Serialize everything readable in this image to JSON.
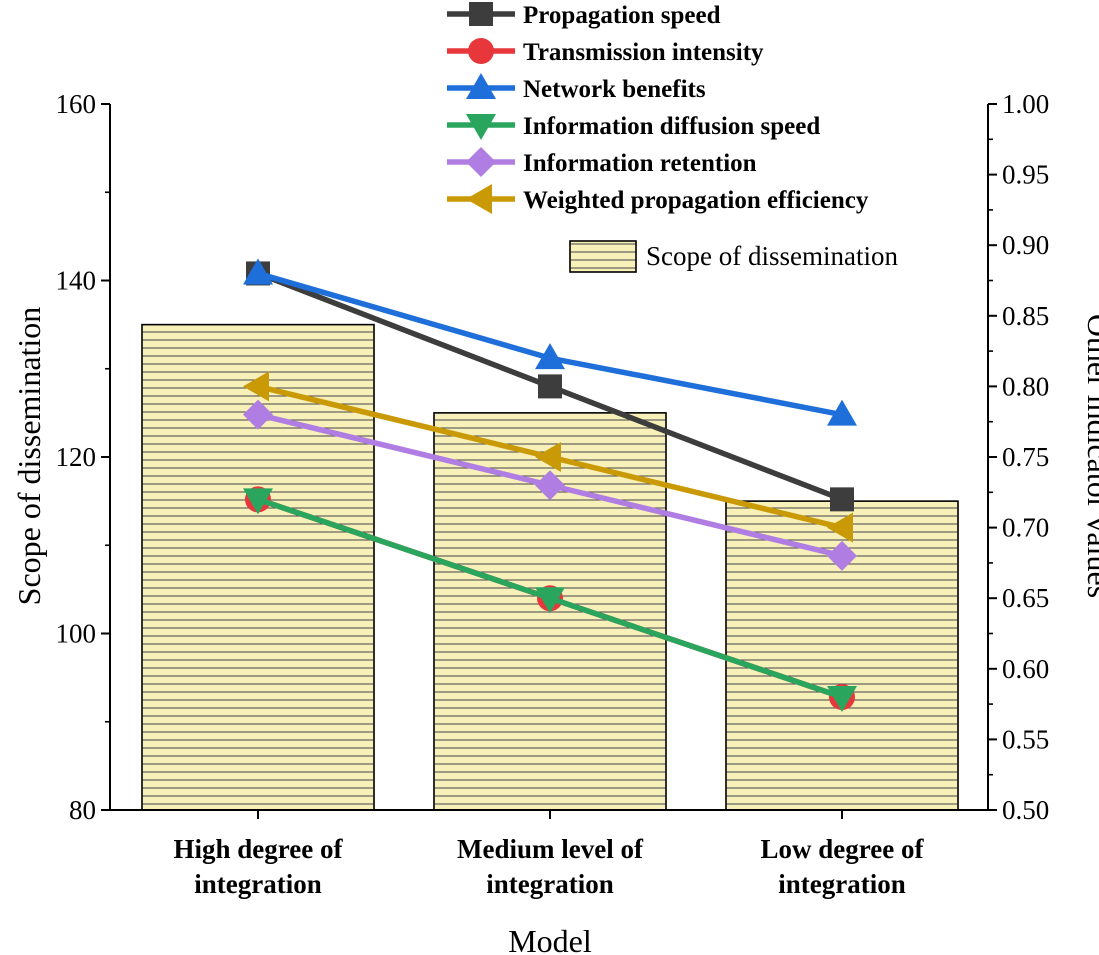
{
  "chart_data": {
    "type": "bar",
    "categories": [
      [
        "High degree of",
        "integration"
      ],
      [
        "Medium level of",
        "integration"
      ],
      [
        "Low degree of",
        "integration"
      ]
    ],
    "xlabel": "Model",
    "ylabel_left": "Scope of dissemination",
    "ylabel_right": "Other indicator values",
    "ylim_left": [
      80,
      160
    ],
    "ylim_right": [
      0.5,
      1.0
    ],
    "left_ticks": [
      "80",
      "100",
      "120",
      "140",
      "160"
    ],
    "right_ticks": [
      "0.50",
      "0.55",
      "0.60",
      "0.65",
      "0.70",
      "0.75",
      "0.80",
      "0.85",
      "0.90",
      "0.95",
      "1.00"
    ],
    "bar_series": {
      "name": "Scope of dissemination",
      "axis": "left",
      "values": [
        135,
        125,
        115
      ],
      "fill": "#f7f0b8",
      "hatch": "#555555"
    },
    "line_series": [
      {
        "name": "Propagation speed",
        "axis": "right",
        "values": [
          0.88,
          0.8,
          0.72
        ],
        "color": "#3d3d3d",
        "marker": "square"
      },
      {
        "name": "Transmission intensity",
        "axis": "right",
        "values": [
          0.72,
          0.65,
          0.58
        ],
        "color": "#e8373a",
        "marker": "circle"
      },
      {
        "name": "Network benefits",
        "axis": "right",
        "values": [
          0.88,
          0.82,
          0.78
        ],
        "color": "#1f6fdb",
        "marker": "triangle-up"
      },
      {
        "name": "Information diffusion speed",
        "axis": "right",
        "values": [
          0.72,
          0.65,
          0.58
        ],
        "color": "#2aa55e",
        "marker": "triangle-down"
      },
      {
        "name": "Information retention",
        "axis": "right",
        "values": [
          0.78,
          0.73,
          0.68
        ],
        "color": "#b07ee2",
        "marker": "diamond"
      },
      {
        "name": "Weighted propagation efficiency",
        "axis": "right",
        "values": [
          0.8,
          0.75,
          0.7
        ],
        "color": "#c99a06",
        "marker": "triangle-left"
      }
    ]
  }
}
